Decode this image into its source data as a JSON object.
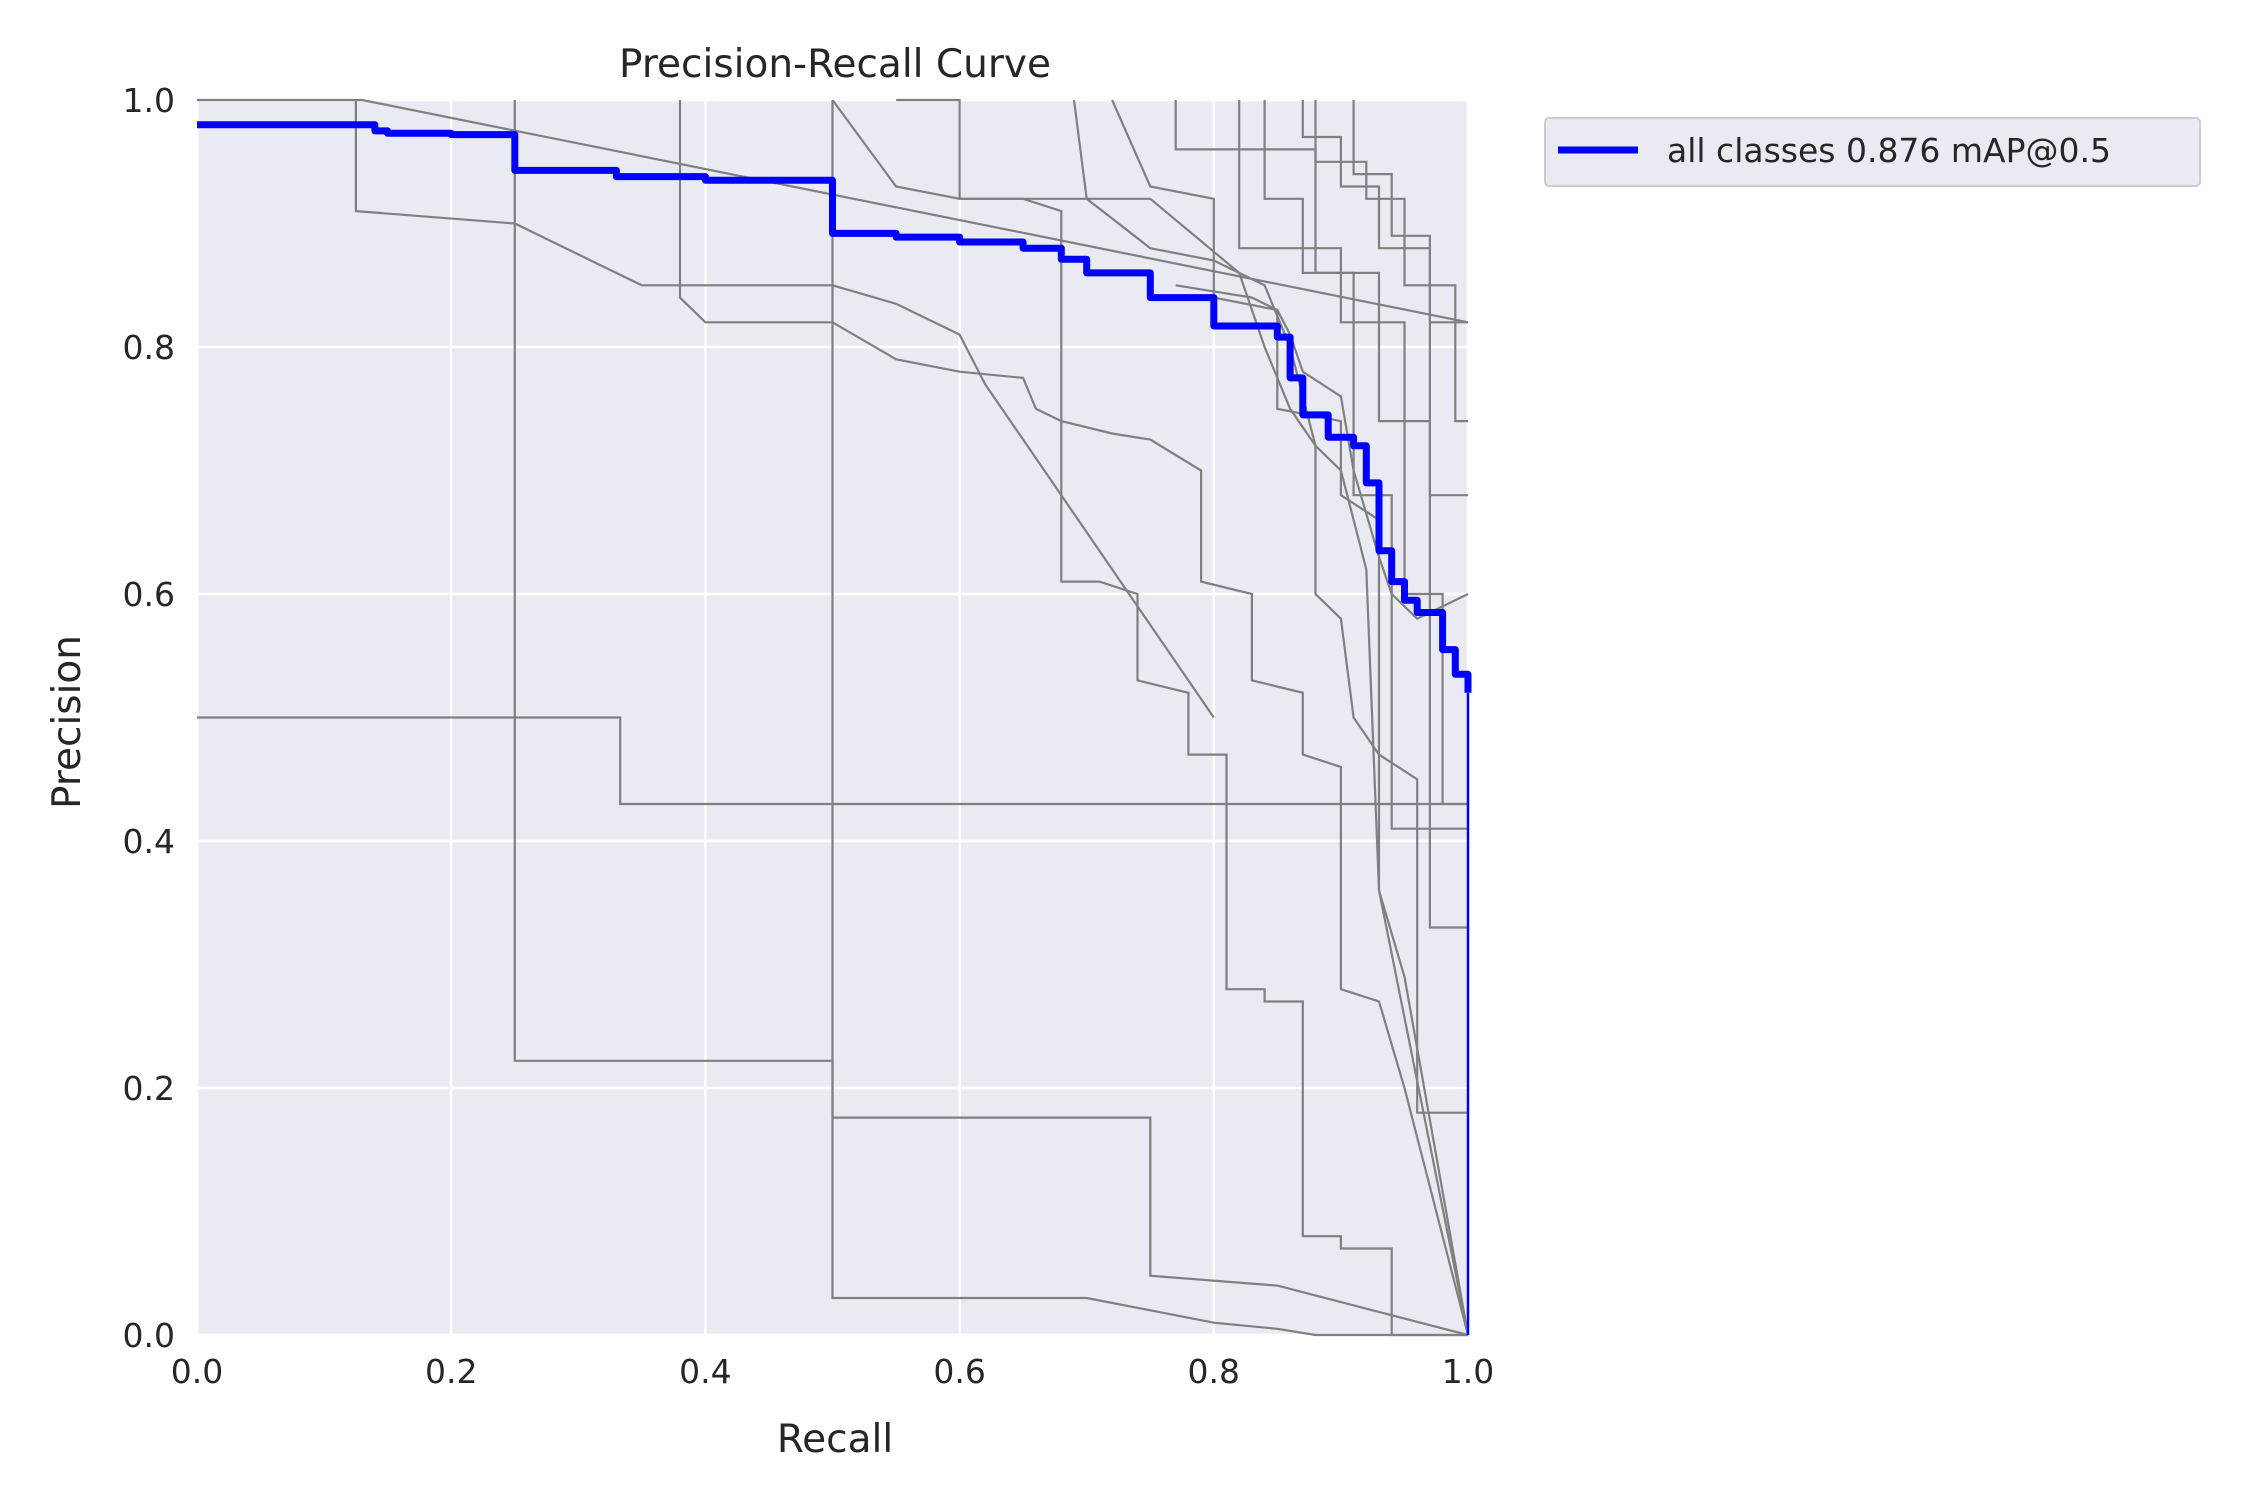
{
  "chart_data": {
    "type": "line",
    "title": "Precision-Recall Curve",
    "xlabel": "Recall",
    "ylabel": "Precision",
    "xlim": [
      0,
      1
    ],
    "ylim": [
      0,
      1
    ],
    "xticks": [
      "0.0",
      "0.2",
      "0.4",
      "0.6",
      "0.8",
      "1.0"
    ],
    "yticks": [
      "0.0",
      "0.2",
      "0.4",
      "0.6",
      "0.8",
      "1.0"
    ],
    "grid": true,
    "legend_position": "outside-top-right",
    "colors": {
      "background": "#eaeaf2",
      "grid": "#ffffff",
      "class_curves": "#808080",
      "all_classes": "#0000ff"
    },
    "series": [
      {
        "name": "all classes 0.876 mAP@0.5",
        "x": [
          0,
          0.125,
          0.14,
          0.15,
          0.2,
          0.25,
          0.25,
          0.33,
          0.4,
          0.5,
          0.5,
          0.55,
          0.6,
          0.65,
          0.68,
          0.7,
          0.75,
          0.8,
          0.85,
          0.86,
          0.87,
          0.89,
          0.91,
          0.92,
          0.93,
          0.94,
          0.95,
          0.96,
          0.98,
          0.99,
          1.0
        ],
        "y": [
          0.98,
          0.98,
          0.975,
          0.973,
          0.972,
          0.971,
          0.943,
          0.938,
          0.935,
          0.933,
          0.892,
          0.889,
          0.885,
          0.88,
          0.871,
          0.86,
          0.84,
          0.817,
          0.808,
          0.775,
          0.745,
          0.727,
          0.72,
          0.69,
          0.635,
          0.61,
          0.595,
          0.585,
          0.555,
          0.535,
          0.52
        ]
      },
      {
        "name": "",
        "x": [
          0,
          0.12,
          0.125,
          0.13,
          1.0
        ],
        "y": [
          1.0,
          1.0,
          1.0,
          1.0,
          0.82
        ]
      },
      {
        "name": "",
        "x": [
          0.125,
          0.125,
          0.25,
          0.35,
          0.5,
          0.55,
          0.6,
          0.62,
          0.8
        ],
        "y": [
          1.0,
          0.91,
          0.9,
          0.85,
          0.85,
          0.835,
          0.81,
          0.77,
          0.5
        ]
      },
      {
        "name": "",
        "x": [
          0,
          0.333,
          0.333,
          1.0
        ],
        "y": [
          0.5,
          0.5,
          0.43,
          0.43
        ]
      },
      {
        "name": "",
        "x": [
          0.25,
          0.25,
          0.5,
          0.5,
          0.75,
          0.75,
          0.85,
          1.0
        ],
        "y": [
          1.0,
          0.222,
          0.222,
          0.176,
          0.176,
          0.048,
          0.04,
          0.0
        ]
      },
      {
        "name": "",
        "x": [
          0.5,
          0.5,
          0.7,
          0.75,
          0.75,
          0.8,
          0.8,
          0.85,
          0.88,
          1.0
        ],
        "y": [
          1.0,
          0.03,
          0.03,
          0.02,
          0.02,
          0.01,
          0.01,
          0.005,
          0.0,
          0.0
        ]
      },
      {
        "name": "",
        "x": [
          0.38,
          0.38,
          0.4,
          0.5,
          0.55,
          0.6,
          0.65,
          0.66,
          0.68,
          0.72,
          0.75,
          0.79,
          0.79,
          0.83,
          0.83,
          0.87,
          0.87,
          0.9,
          0.9,
          0.93,
          0.95,
          1.0
        ],
        "y": [
          1.0,
          0.84,
          0.82,
          0.82,
          0.79,
          0.78,
          0.775,
          0.75,
          0.74,
          0.73,
          0.725,
          0.7,
          0.61,
          0.6,
          0.53,
          0.52,
          0.47,
          0.46,
          0.28,
          0.27,
          0.2,
          0.0
        ]
      },
      {
        "name": "",
        "x": [
          0.5,
          0.55,
          0.6,
          0.65,
          0.68,
          0.68,
          0.71,
          0.74,
          0.74,
          0.78,
          0.78,
          0.81,
          0.81,
          0.84,
          0.84,
          0.87,
          0.87,
          0.9,
          0.9,
          0.94,
          0.94,
          1.0
        ],
        "y": [
          1.0,
          0.93,
          0.92,
          0.92,
          0.91,
          0.61,
          0.61,
          0.6,
          0.53,
          0.52,
          0.47,
          0.47,
          0.28,
          0.28,
          0.27,
          0.27,
          0.08,
          0.08,
          0.07,
          0.07,
          0.0,
          0.0
        ]
      },
      {
        "name": "",
        "x": [
          0.55,
          0.6,
          0.6,
          0.75,
          0.82,
          0.84,
          0.86,
          0.88,
          0.9,
          0.92,
          0.93,
          1.0
        ],
        "y": [
          1.0,
          1.0,
          0.92,
          0.92,
          0.86,
          0.8,
          0.75,
          0.72,
          0.7,
          0.62,
          0.36,
          0.0
        ]
      },
      {
        "name": "",
        "x": [
          0.69,
          0.7,
          0.75,
          0.8,
          0.82,
          0.84,
          0.86,
          0.88,
          0.88,
          0.9,
          0.91,
          0.93,
          0.93,
          0.95,
          1.0
        ],
        "y": [
          1.0,
          0.92,
          0.88,
          0.87,
          0.86,
          0.85,
          0.8,
          0.72,
          0.6,
          0.58,
          0.5,
          0.47,
          0.36,
          0.29,
          0.0
        ]
      },
      {
        "name": "",
        "x": [
          0.72,
          0.75,
          0.8,
          0.8,
          0.85,
          0.85,
          0.9,
          0.9,
          0.93,
          0.93,
          0.96,
          0.96,
          1.0
        ],
        "y": [
          1.0,
          0.93,
          0.92,
          0.84,
          0.83,
          0.75,
          0.74,
          0.68,
          0.66,
          0.47,
          0.45,
          0.18,
          0.18
        ]
      },
      {
        "name": "",
        "x": [
          0.77,
          0.77,
          0.88,
          0.88,
          0.93,
          0.93,
          0.97,
          0.97,
          1.0
        ],
        "y": [
          1.0,
          0.96,
          0.96,
          0.86,
          0.86,
          0.74,
          0.74,
          0.33,
          0.33
        ]
      },
      {
        "name": "",
        "x": [
          0.82,
          0.82,
          0.9,
          0.9,
          0.95,
          0.95,
          0.98,
          0.98,
          1.0
        ],
        "y": [
          1.0,
          0.88,
          0.88,
          0.82,
          0.82,
          0.6,
          0.6,
          0.43,
          0.43
        ]
      },
      {
        "name": "",
        "x": [
          0.84,
          0.84,
          0.87,
          0.87,
          0.91,
          0.91,
          0.94,
          0.94,
          1.0
        ],
        "y": [
          1.0,
          0.92,
          0.92,
          0.86,
          0.86,
          0.68,
          0.68,
          0.41,
          0.41
        ]
      },
      {
        "name": "",
        "x": [
          0.87,
          0.87,
          0.9,
          0.9,
          0.93,
          0.93,
          0.97,
          0.97,
          1.0
        ],
        "y": [
          1.0,
          0.97,
          0.97,
          0.93,
          0.93,
          0.88,
          0.88,
          0.68,
          0.68
        ]
      },
      {
        "name": "",
        "x": [
          0.88,
          0.88,
          0.92,
          0.92,
          0.95,
          0.95,
          0.99,
          0.99,
          1.0
        ],
        "y": [
          1.0,
          0.95,
          0.95,
          0.92,
          0.92,
          0.85,
          0.85,
          0.74,
          0.74
        ]
      },
      {
        "name": "",
        "x": [
          0.91,
          0.91,
          0.94,
          0.94,
          0.97,
          0.97,
          1.0
        ],
        "y": [
          1.0,
          0.94,
          0.94,
          0.89,
          0.89,
          0.82,
          0.82
        ]
      },
      {
        "name": "",
        "x": [
          0.77,
          0.83,
          0.85,
          0.86,
          0.87,
          0.9,
          0.91,
          0.93,
          0.94,
          0.96,
          1.0
        ],
        "y": [
          0.85,
          0.84,
          0.83,
          0.81,
          0.78,
          0.76,
          0.7,
          0.63,
          0.6,
          0.58,
          0.6
        ]
      }
    ]
  }
}
